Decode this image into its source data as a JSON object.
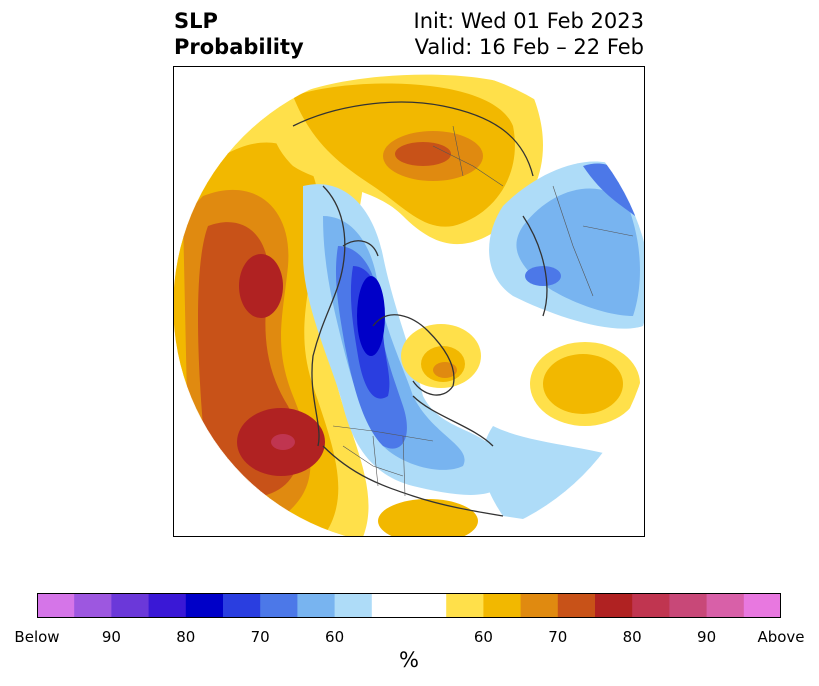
{
  "title": {
    "variable_line1": "SLP",
    "variable_line2": "Probability",
    "init": "Init: Wed 01 Feb 2023",
    "valid": "Valid: 16 Feb – 22 Feb"
  },
  "colorbar": {
    "colors": [
      "#d575e8",
      "#9d57e0",
      "#6b38d9",
      "#3a18d6",
      "#0000c8",
      "#2a3ee0",
      "#4c78e8",
      "#78b4f0",
      "#aedcf8",
      "#ffffff",
      "#ffffff",
      "#ffe04a",
      "#f2b800",
      "#e08a10",
      "#c85218",
      "#b02222",
      "#c03550",
      "#c84878",
      "#d860a8",
      "#e878e0"
    ],
    "tick_labels": [
      "Below",
      "90",
      "80",
      "70",
      "60",
      "60",
      "70",
      "80",
      "90",
      "Above"
    ],
    "units": "%"
  },
  "map": {
    "projection": "north-polar-stereographic",
    "features": [
      "coastlines",
      "country-borders",
      "state-borders"
    ],
    "anomaly_regions": [
      {
        "name": "north-pacific-above",
        "level": "above-80"
      },
      {
        "name": "greenland-below",
        "level": "below-80"
      },
      {
        "name": "europe-above",
        "level": "above-60"
      },
      {
        "name": "siberia-below",
        "level": "below-70"
      },
      {
        "name": "east-atlantic-above",
        "level": "above-60"
      }
    ]
  }
}
